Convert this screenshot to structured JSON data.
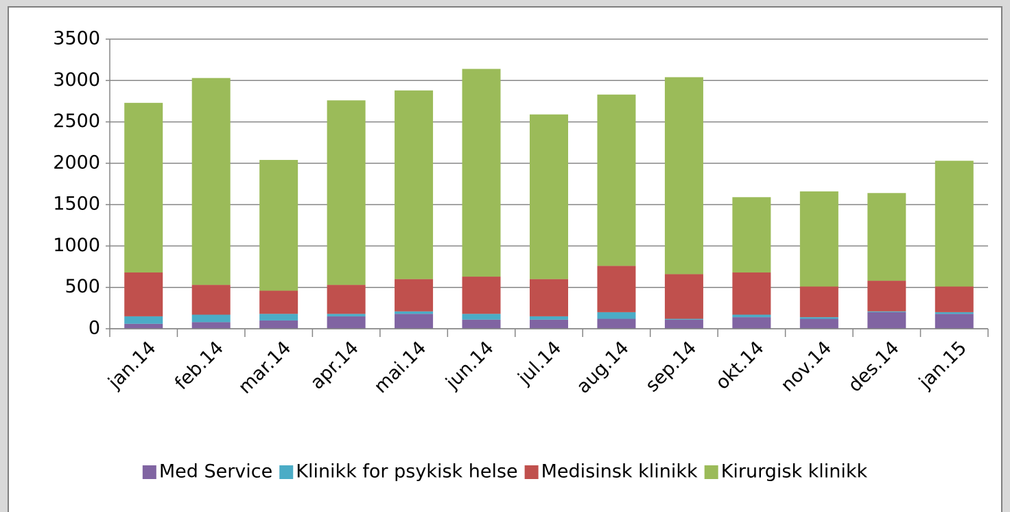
{
  "chart_data": {
    "type": "stacked_bar",
    "categories": [
      "jan.14",
      "feb.14",
      "mar.14",
      "apr.14",
      "mai.14",
      "jun.14",
      "jul.14",
      "aug.14",
      "sep.14",
      "okt.14",
      "nov.14",
      "des.14",
      "jan.15"
    ],
    "series": [
      {
        "name": "Med Service",
        "color": "#8064a2",
        "values": [
          60,
          80,
          100,
          150,
          180,
          110,
          110,
          120,
          110,
          140,
          120,
          200,
          180
        ]
      },
      {
        "name": "Klinikk for psykisk helse",
        "color": "#4bacc6",
        "values": [
          90,
          90,
          80,
          30,
          30,
          70,
          40,
          80,
          10,
          30,
          20,
          10,
          20
        ]
      },
      {
        "name": "Medisinsk klinikk",
        "color": "#c0504d",
        "values": [
          530,
          360,
          280,
          350,
          390,
          450,
          450,
          560,
          540,
          510,
          370,
          370,
          310
        ]
      },
      {
        "name": "Kirurgisk klinikk",
        "color": "#9bbb59",
        "values": [
          2050,
          2500,
          1580,
          2230,
          2280,
          2510,
          1990,
          2070,
          2380,
          910,
          1150,
          1060,
          1520
        ]
      }
    ],
    "ylim": [
      0,
      3500
    ],
    "yticks": [
      0,
      500,
      1000,
      1500,
      2000,
      2500,
      3000,
      3500
    ],
    "grid": true,
    "legend": "bottom"
  }
}
